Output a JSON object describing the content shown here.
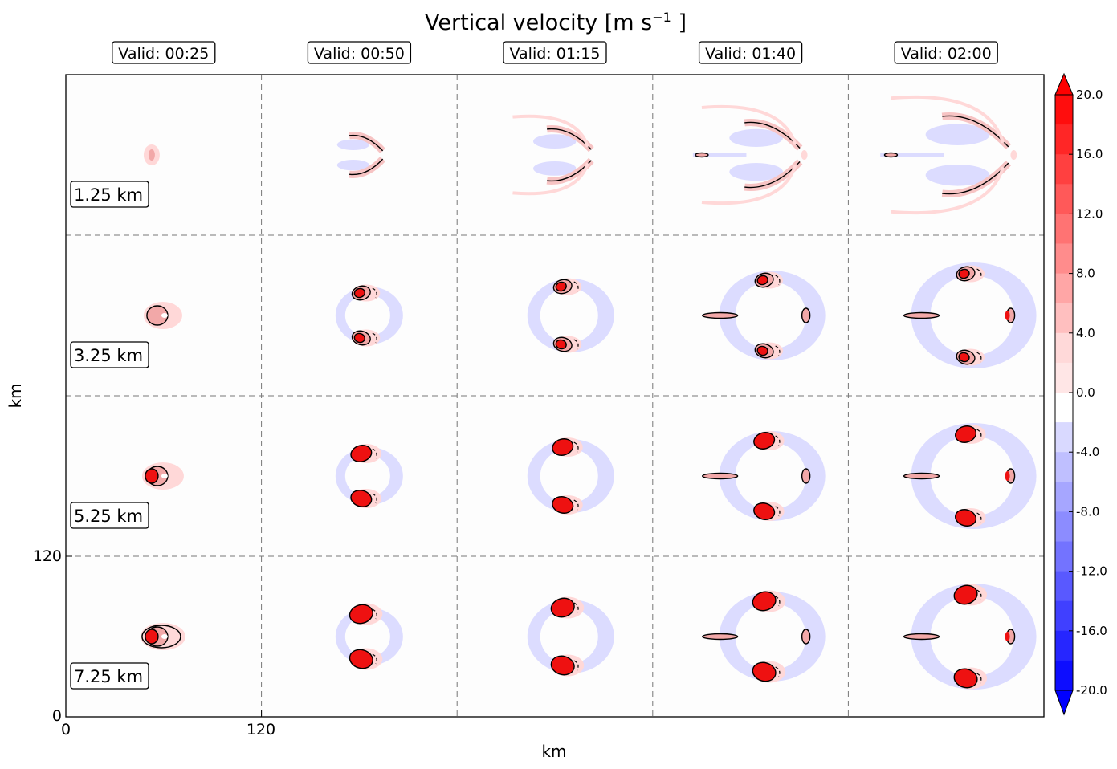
{
  "chart_data": {
    "type": "heatmap",
    "title": "Vertical velocity [m s",
    "title_superscript": "−1",
    "title_suffix": " ]",
    "xlabel": "km",
    "ylabel": "km",
    "x_ticks": [
      "0",
      "120"
    ],
    "y_ticks": [
      "0",
      "120"
    ],
    "x_range": [
      0,
      600
    ],
    "y_range": [
      0,
      480
    ],
    "grid": true,
    "columns": [
      "Valid: 00:25",
      "Valid: 00:50",
      "Valid: 01:15",
      "Valid: 01:40",
      "Valid: 02:00"
    ],
    "rows": [
      "1.25 km",
      "3.25 km",
      "5.25 km",
      "7.25 km"
    ],
    "colorbar": {
      "ticks": [
        "20.0",
        "16.0",
        "12.0",
        "8.0",
        "4.0",
        "0.0",
        "-4.0",
        "-8.0",
        "-12.0",
        "-16.0",
        "-20.0"
      ],
      "min": -20,
      "max": 20,
      "step": 2,
      "extend": "both",
      "positive_color": "#ff0000",
      "negative_color": "#0000ff",
      "zero_color": "#ffffff"
    },
    "colors": {
      "light_pos": "#ffd8d8",
      "mid_pos": "#f2a8a8",
      "strong_pos": "#ee1111",
      "light_neg": "#dcdcff",
      "contour": "#000000"
    }
  }
}
